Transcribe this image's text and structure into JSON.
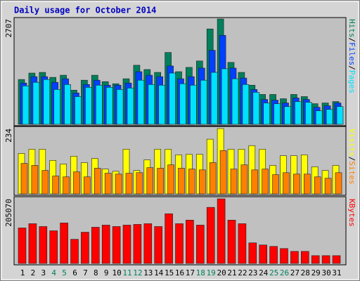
{
  "title": "Daily usage for October 2014",
  "chart_data": [
    {
      "type": "bar",
      "ylim": [
        0,
        2707
      ],
      "yticks": [
        2707
      ],
      "legend_separator": "/",
      "series": [
        {
          "name": "Hits",
          "color": "#00805c",
          "values": [
            1152,
            1317,
            1335,
            1207,
            1262,
            878,
            1134,
            1262,
            1097,
            1043,
            1171,
            1518,
            1408,
            1335,
            1847,
            1353,
            1463,
            1628,
            2451,
            2707,
            1591,
            1335,
            1006,
            768,
            768,
            658,
            768,
            713,
            530,
            549,
            585
          ]
        },
        {
          "name": "Files",
          "color": "#0040ff",
          "values": [
            1061,
            1225,
            1225,
            1079,
            1171,
            805,
            1024,
            1134,
            1006,
            1006,
            1061,
            1353,
            1262,
            1225,
            1500,
            1171,
            1225,
            1445,
            1902,
            2286,
            1445,
            1189,
            896,
            640,
            622,
            549,
            677,
            640,
            439,
            476,
            549
          ]
        },
        {
          "name": "Pages",
          "color": "#00e0ff",
          "values": [
            988,
            1079,
            1152,
            896,
            1024,
            713,
            951,
            1006,
            951,
            896,
            933,
            1134,
            1024,
            1006,
            1317,
            1043,
            1006,
            1134,
            1335,
            1427,
            1171,
            1024,
            823,
            549,
            530,
            457,
            585,
            567,
            348,
            384,
            457
          ]
        }
      ]
    },
    {
      "type": "bar",
      "ylim": [
        0,
        234
      ],
      "yticks": [
        234
      ],
      "legend_separator": "/",
      "series": [
        {
          "name": "Visits",
          "color": "#ffff00",
          "values": [
            145,
            160,
            160,
            120,
            107,
            135,
            112,
            127,
            89,
            81,
            160,
            84,
            122,
            160,
            160,
            140,
            142,
            142,
            196,
            234,
            160,
            160,
            173,
            160,
            102,
            137,
            137,
            140,
            97,
            84,
            102
          ]
        },
        {
          "name": "Sites",
          "color": "#ff8000",
          "values": [
            109,
            102,
            84,
            64,
            61,
            79,
            61,
            92,
            74,
            71,
            74,
            76,
            94,
            92,
            104,
            92,
            89,
            86,
            112,
            155,
            89,
            104,
            86,
            89,
            69,
            76,
            71,
            71,
            61,
            56,
            76
          ]
        }
      ]
    },
    {
      "type": "bar",
      "ylim": [
        0,
        205070
      ],
      "yticks": [
        205070
      ],
      "categories": [
        "1",
        "2",
        "3",
        "4",
        "5",
        "6",
        "7",
        "8",
        "9",
        "10",
        "11",
        "12",
        "13",
        "14",
        "15",
        "16",
        "17",
        "18",
        "19",
        "20",
        "21",
        "22",
        "23",
        "24",
        "25",
        "26",
        "27",
        "28",
        "29",
        "30",
        "31"
      ],
      "category_colors": [
        "#000000",
        "#000000",
        "#000000",
        "#00805c",
        "#00805c",
        "#000000",
        "#000000",
        "#000000",
        "#000000",
        "#000000",
        "#00805c",
        "#00805c",
        "#000000",
        "#000000",
        "#000000",
        "#000000",
        "#000000",
        "#00805c",
        "#00805c",
        "#000000",
        "#000000",
        "#000000",
        "#000000",
        "#000000",
        "#00805c",
        "#00805c",
        "#000000",
        "#000000",
        "#000000",
        "#000000",
        "#000000"
      ],
      "series": [
        {
          "name": "KBytes",
          "color": "#ff0000",
          "values": [
            112650,
            126170,
            117160,
            103640,
            128420,
            76600,
            99130,
            114900,
            121660,
            117160,
            121660,
            123920,
            126170,
            117160,
            157710,
            126170,
            137430,
            121660,
            177990,
            205070,
            137430,
            126170,
            65340,
            58580,
            54070,
            47310,
            38300,
            38300,
            24780,
            24780,
            24780
          ]
        }
      ]
    }
  ]
}
